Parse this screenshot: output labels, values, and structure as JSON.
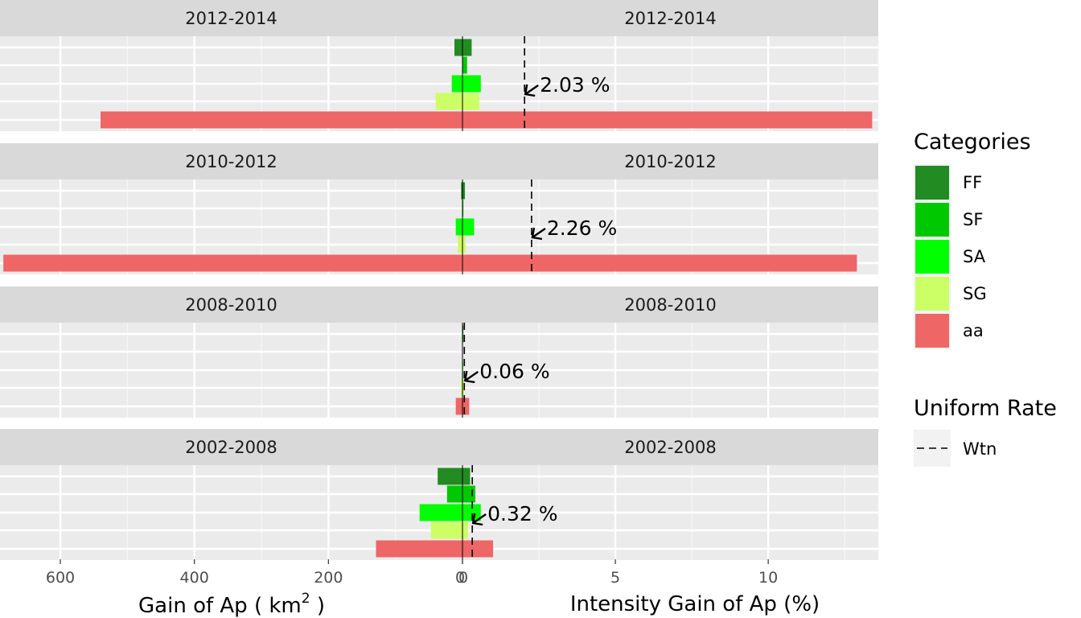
{
  "chart_data": {
    "type": "bar",
    "orientation": "horizontal",
    "categories": [
      "FF",
      "SF",
      "SA",
      "SG",
      "aa"
    ],
    "panels": [
      {
        "interval": "2012-2014",
        "gain_km2": [
          12,
          0,
          16,
          40,
          540
        ],
        "intensity_pct": [
          0.3,
          0.15,
          0.6,
          0.55,
          13.4
        ],
        "uniform_rate": 2.03,
        "uniform_rate_label": "2.03 %"
      },
      {
        "interval": "2010-2012",
        "gain_km2": [
          2,
          0,
          10,
          7,
          685
        ],
        "intensity_pct": [
          0.08,
          0.03,
          0.38,
          0.1,
          12.9
        ],
        "uniform_rate": 2.26,
        "uniform_rate_label": "2.26 %"
      },
      {
        "interval": "2008-2010",
        "gain_km2": [
          0,
          0,
          0,
          2,
          10
        ],
        "intensity_pct": [
          0.03,
          0.01,
          0.02,
          0.05,
          0.22
        ],
        "uniform_rate": 0.06,
        "uniform_rate_label": "0.06 %"
      },
      {
        "interval": "2002-2008",
        "gain_km2": [
          37,
          23,
          64,
          47,
          129
        ],
        "intensity_pct": [
          0.25,
          0.42,
          0.6,
          0.18,
          1.0
        ],
        "uniform_rate": 0.32,
        "uniform_rate_label": "0.32 %"
      }
    ],
    "left_axis": {
      "title_prefix": "Gain of Ap ( km",
      "title_superscript": "2",
      "title_suffix": " )",
      "ticks": [
        600,
        400,
        200,
        0
      ],
      "range": [
        690,
        0
      ]
    },
    "right_axis": {
      "title": "Intensity Gain of Ap (%)",
      "ticks": [
        0,
        5,
        10
      ],
      "range": [
        0,
        13.6
      ]
    },
    "legend": {
      "title": "Categories",
      "items": [
        {
          "label": "FF",
          "color": "#228B22"
        },
        {
          "label": "SF",
          "color": "#00C800"
        },
        {
          "label": "SA",
          "color": "#00FF00"
        },
        {
          "label": "SG",
          "color": "#CCFF66"
        },
        {
          "label": "aa",
          "color": "#EE6666"
        }
      ],
      "line_title": "Uniform Rate",
      "line_label": "Wtn",
      "placement": "right"
    },
    "grid": true
  }
}
